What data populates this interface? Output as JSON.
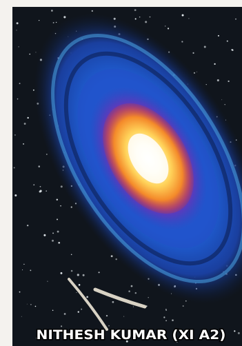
{
  "caption": "NITHESH KUMAR (XI A2)"
}
